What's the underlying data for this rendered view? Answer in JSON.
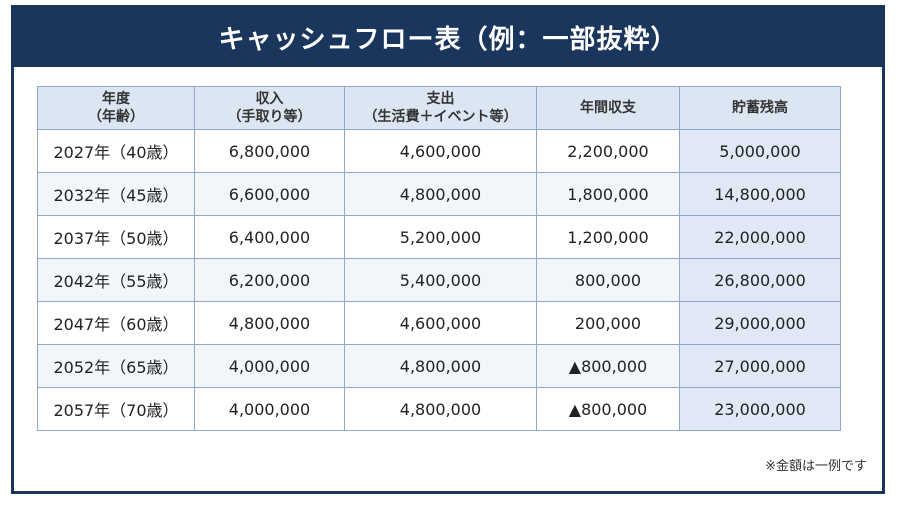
{
  "title": "キャッシュフロー表（例：一部抜粋）",
  "headers": [
    {
      "line1": "年度",
      "line2": "（年齢）"
    },
    {
      "line1": "収入",
      "line2": "（手取り等）"
    },
    {
      "line1": "支出",
      "line2": "（生活費＋イベント等）"
    },
    {
      "line1": "年間収支",
      "line2": ""
    },
    {
      "line1": "貯蓄残高",
      "line2": ""
    }
  ],
  "rows": [
    {
      "year": "2027年（40歳）",
      "income": "6,800,000",
      "expense": "4,600,000",
      "balance": "2,200,000",
      "savings": "5,000,000"
    },
    {
      "year": "2032年（45歳）",
      "income": "6,600,000",
      "expense": "4,800,000",
      "balance": "1,800,000",
      "savings": "14,800,000"
    },
    {
      "year": "2037年（50歳）",
      "income": "6,400,000",
      "expense": "5,200,000",
      "balance": "1,200,000",
      "savings": "22,000,000"
    },
    {
      "year": "2042年（55歳）",
      "income": "6,200,000",
      "expense": "5,400,000",
      "balance": "800,000",
      "savings": "26,800,000"
    },
    {
      "year": "2047年（60歳）",
      "income": "4,800,000",
      "expense": "4,600,000",
      "balance": "200,000",
      "savings": "29,000,000"
    },
    {
      "year": "2052年（65歳）",
      "income": "4,000,000",
      "expense": "4,800,000",
      "balance": "▲800,000",
      "savings": "27,000,000"
    },
    {
      "year": "2057年（70歳）",
      "income": "4,000,000",
      "expense": "4,800,000",
      "balance": "▲800,000",
      "savings": "23,000,000"
    }
  ],
  "note": "※金額は一例です",
  "colors": {
    "header_bar": "#1b365d",
    "table_header": "#dce6f2",
    "negative": "#b11a1a"
  }
}
